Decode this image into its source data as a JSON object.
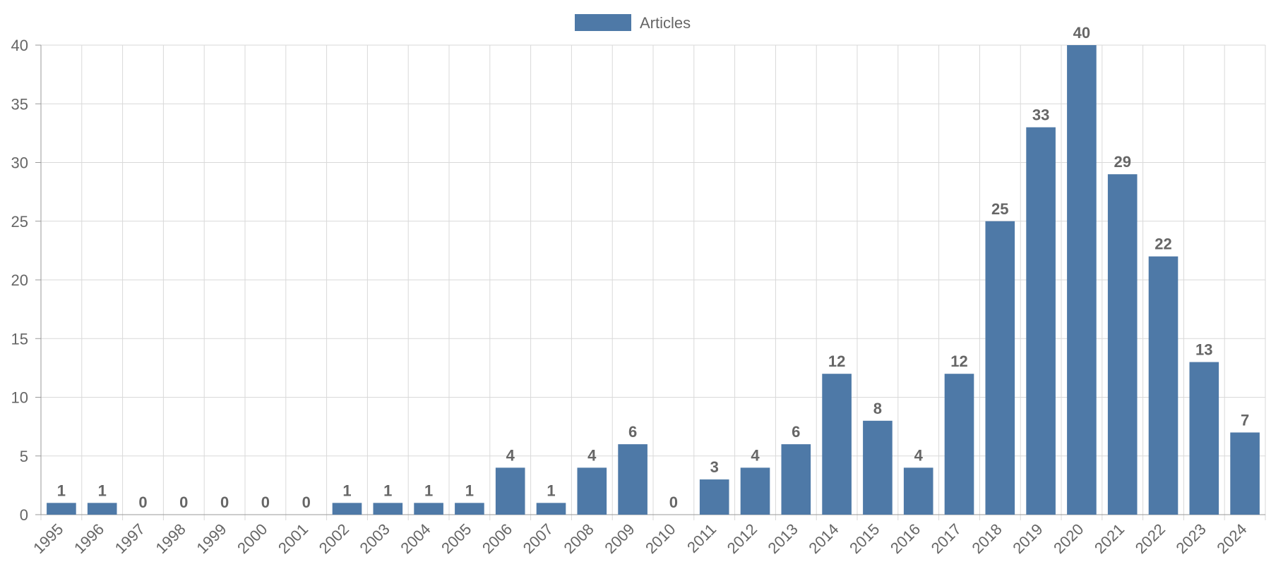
{
  "chart_data": {
    "type": "bar",
    "title": "",
    "xlabel": "",
    "ylabel": "",
    "ylim": [
      0,
      40
    ],
    "yticks": [
      0,
      5,
      10,
      15,
      20,
      25,
      30,
      35,
      40
    ],
    "grid": true,
    "legend_position": "top-center",
    "categories": [
      "1995",
      "1996",
      "1997",
      "1998",
      "1999",
      "2000",
      "2001",
      "2002",
      "2003",
      "2004",
      "2005",
      "2006",
      "2007",
      "2008",
      "2009",
      "2010",
      "2011",
      "2012",
      "2013",
      "2014",
      "2015",
      "2016",
      "2017",
      "2018",
      "2019",
      "2020",
      "2021",
      "2022",
      "2023",
      "2024"
    ],
    "series": [
      {
        "name": "Articles",
        "color": "#4e79a7",
        "values": [
          1,
          1,
          0,
          0,
          0,
          0,
          0,
          1,
          1,
          1,
          1,
          4,
          1,
          4,
          6,
          0,
          3,
          4,
          6,
          12,
          8,
          4,
          12,
          25,
          33,
          40,
          29,
          22,
          13,
          7
        ]
      }
    ],
    "data_labels": true
  }
}
